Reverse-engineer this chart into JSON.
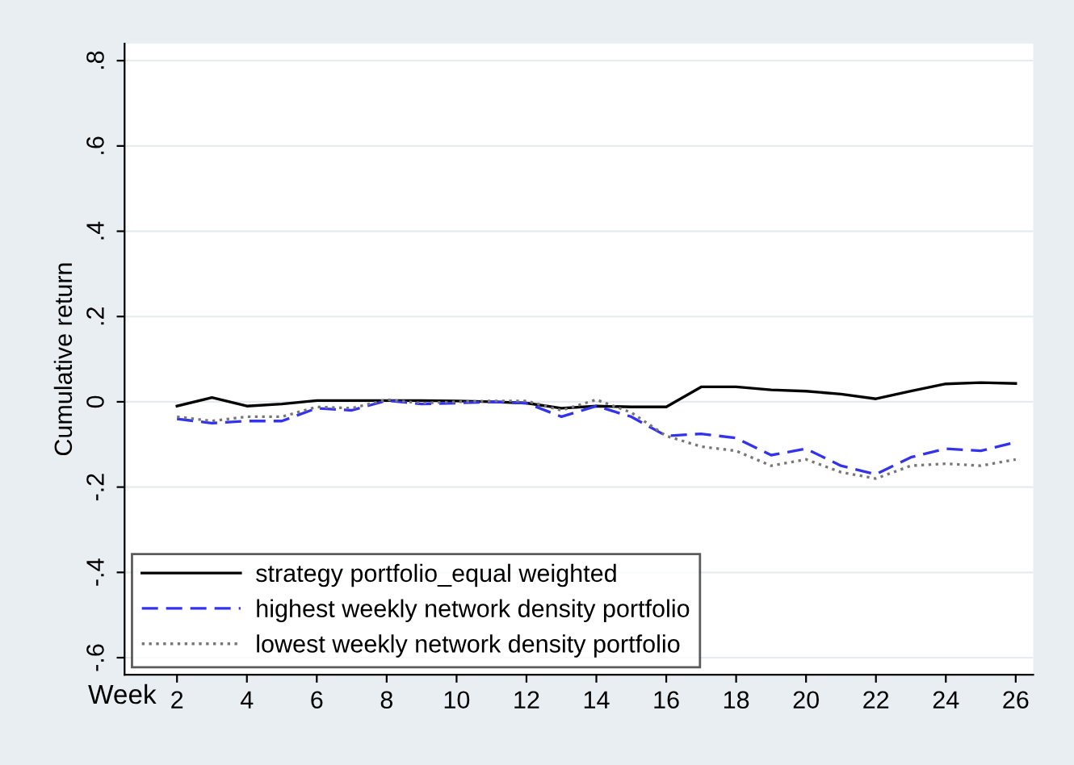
{
  "chart_data": {
    "type": "line",
    "xlabel": "Week",
    "ylabel": "Cumulative return",
    "x": [
      2,
      3,
      4,
      5,
      6,
      7,
      8,
      9,
      10,
      11,
      12,
      13,
      14,
      15,
      16,
      17,
      18,
      19,
      20,
      21,
      22,
      23,
      24,
      25,
      26
    ],
    "series": [
      {
        "name": "strategy portfolio_equal weighted",
        "color": "#000000",
        "line_style": "solid",
        "values": [
          -0.01,
          0.01,
          -0.01,
          -0.005,
          0.003,
          0.003,
          0.003,
          0.003,
          0.002,
          0,
          -0.003,
          -0.015,
          -0.01,
          -0.012,
          -0.012,
          0.035,
          0.035,
          0.028,
          0.025,
          0.018,
          0.007,
          0.025,
          0.042,
          0.045,
          0.043
        ]
      },
      {
        "name": "highest weekly network density portfolio",
        "color": "#3333ee",
        "line_style": "dashed",
        "values": [
          -0.04,
          -0.05,
          -0.045,
          -0.045,
          -0.015,
          -0.02,
          0.003,
          -0.005,
          -0.003,
          0,
          -0.003,
          -0.035,
          -0.01,
          -0.035,
          -0.08,
          -0.075,
          -0.085,
          -0.125,
          -0.11,
          -0.15,
          -0.17,
          -0.13,
          -0.11,
          -0.115,
          -0.095
        ]
      },
      {
        "name": "lowest weekly network density portfolio",
        "color": "#777777",
        "line_style": "dotted",
        "values": [
          -0.035,
          -0.045,
          -0.035,
          -0.035,
          -0.012,
          -0.015,
          0.005,
          -0.003,
          0,
          0.002,
          0.002,
          -0.02,
          0.005,
          -0.025,
          -0.08,
          -0.105,
          -0.115,
          -0.15,
          -0.135,
          -0.165,
          -0.18,
          -0.15,
          -0.145,
          -0.15,
          -0.135
        ]
      }
    ],
    "xlim": [
      0.5,
      26.5
    ],
    "xticks": [
      2,
      4,
      6,
      8,
      10,
      12,
      14,
      16,
      18,
      20,
      22,
      24,
      26
    ],
    "ylim": [
      -0.64,
      0.84
    ],
    "yticks": [
      {
        "value": -0.6,
        "label": "-.6"
      },
      {
        "value": -0.4,
        "label": "-.4"
      },
      {
        "value": -0.2,
        "label": "-.2"
      },
      0,
      {
        "value": 0.2,
        "label": ".2"
      },
      {
        "value": 0.4,
        "label": ".4"
      },
      {
        "value": 0.6,
        "label": ".6"
      },
      {
        "value": 0.8,
        "label": ".8"
      }
    ],
    "grid": "y",
    "legend": "bottom left"
  }
}
